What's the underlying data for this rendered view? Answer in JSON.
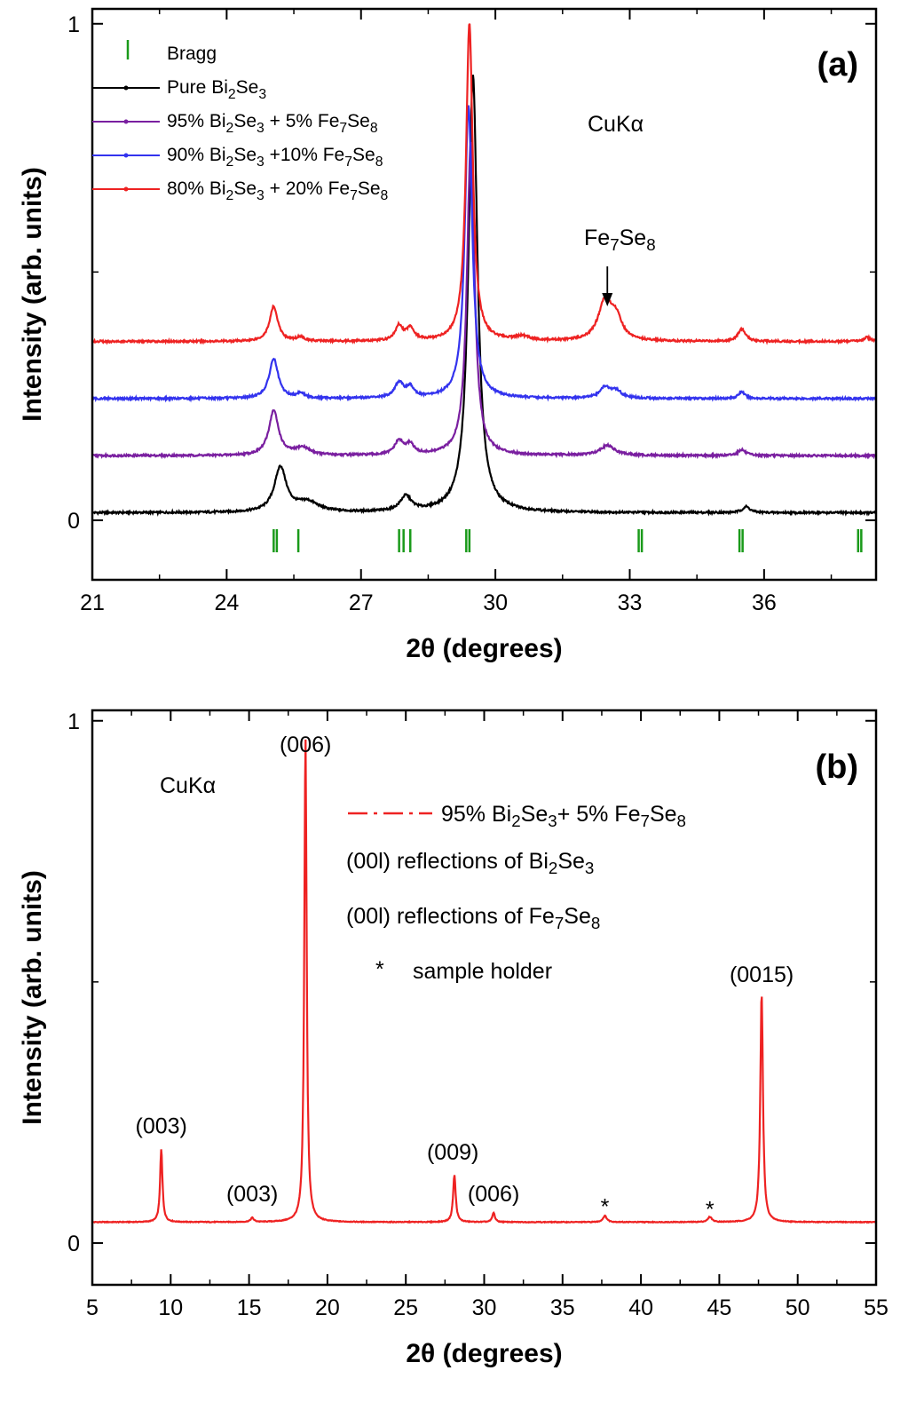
{
  "chart_data": [
    {
      "type": "line",
      "panel_label": "(a)",
      "xlabel": "2θ (degrees)",
      "ylabel": "Intensity (arb. units)",
      "xlim": [
        21,
        38.5
      ],
      "ylim": [
        -0.12,
        1.03
      ],
      "xticks": [
        21,
        24,
        27,
        30,
        33,
        36
      ],
      "yticks": [
        0,
        1
      ],
      "annotations": {
        "source": "CuKα",
        "phase_arrow": {
          "text_base": "Fe",
          "sub1": "7",
          "mid": "Se",
          "sub2": "8",
          "x": 32.5
        }
      },
      "legend": [
        {
          "kind": "bragg",
          "text": "Bragg"
        },
        {
          "kind": "series",
          "series": 0,
          "parts": [
            "Pure Bi",
            "2",
            "Se",
            "3"
          ]
        },
        {
          "kind": "series",
          "series": 1,
          "parts": [
            "95% Bi",
            "2",
            "Se",
            "3",
            " + 5% Fe",
            "7",
            "Se",
            "8"
          ]
        },
        {
          "kind": "series",
          "series": 2,
          "parts": [
            "90% Bi",
            "2",
            "Se",
            "3",
            " +10% Fe",
            "7",
            "Se",
            "8"
          ]
        },
        {
          "kind": "series",
          "series": 3,
          "parts": [
            "80% Bi",
            "2",
            "Se",
            "3",
            " + 20% Fe",
            "7",
            "Se",
            "8"
          ]
        }
      ],
      "bragg_positions": [
        25.05,
        25.12,
        25.6,
        27.85,
        27.95,
        28.1,
        29.35,
        29.42,
        33.2,
        33.27,
        35.45,
        35.52,
        38.1,
        38.17
      ],
      "bragg_color": "#1a9a1a",
      "series": [
        {
          "color": "#000000",
          "offset": 0.015,
          "peaks": [
            [
              25.2,
              0.09,
              0.16
            ],
            [
              25.8,
              0.02,
              0.3
            ],
            [
              28.0,
              0.03,
              0.15
            ],
            [
              29.5,
              0.88,
              0.12
            ],
            [
              35.6,
              0.012,
              0.1
            ]
          ]
        },
        {
          "color": "#7a1fa0",
          "offset": 0.13,
          "peaks": [
            [
              25.05,
              0.09,
              0.13
            ],
            [
              25.7,
              0.015,
              0.2
            ],
            [
              27.85,
              0.028,
              0.12
            ],
            [
              28.1,
              0.02,
              0.1
            ],
            [
              29.45,
              0.63,
              0.1
            ],
            [
              32.5,
              0.02,
              0.2
            ],
            [
              35.5,
              0.012,
              0.1
            ]
          ]
        },
        {
          "color": "#3333ee",
          "offset": 0.245,
          "peaks": [
            [
              25.05,
              0.08,
              0.12
            ],
            [
              25.65,
              0.01,
              0.1
            ],
            [
              27.85,
              0.03,
              0.12
            ],
            [
              28.1,
              0.02,
              0.1
            ],
            [
              29.4,
              0.59,
              0.1
            ],
            [
              32.45,
              0.022,
              0.14
            ],
            [
              32.7,
              0.014,
              0.14
            ],
            [
              35.5,
              0.014,
              0.08
            ]
          ]
        },
        {
          "color": "#ee2222",
          "offset": 0.36,
          "peaks": [
            [
              25.05,
              0.07,
              0.11
            ],
            [
              25.65,
              0.008,
              0.1
            ],
            [
              27.85,
              0.03,
              0.1
            ],
            [
              28.1,
              0.025,
              0.1
            ],
            [
              29.42,
              0.64,
              0.09
            ],
            [
              30.6,
              0.008,
              0.2
            ],
            [
              32.45,
              0.08,
              0.18
            ],
            [
              32.7,
              0.04,
              0.15
            ],
            [
              35.5,
              0.025,
              0.1
            ],
            [
              38.3,
              0.008,
              0.1
            ]
          ]
        }
      ]
    },
    {
      "type": "line",
      "panel_label": "(b)",
      "xlabel": "2θ (degrees)",
      "ylabel": "Intensity (arb. units)",
      "xlim": [
        5,
        55
      ],
      "ylim": [
        -0.08,
        1.02
      ],
      "xticks": [
        5,
        10,
        15,
        20,
        25,
        30,
        35,
        40,
        45,
        50,
        55
      ],
      "yticks": [
        0,
        1
      ],
      "annotations": {
        "source": "CuKα"
      },
      "legend": [
        {
          "kind": "series",
          "parts": [
            "95% Bi",
            "2",
            "Se",
            "3",
            "+ 5% Fe",
            "7",
            "Se",
            "8"
          ]
        },
        {
          "kind": "text",
          "color": "#000000",
          "parts": [
            "(00l) reflections of Bi",
            "2",
            "Se",
            "3"
          ]
        },
        {
          "kind": "text",
          "color": "#7b93b3",
          "parts": [
            "(00l) reflections of Fe",
            "7",
            "Se",
            "8"
          ]
        },
        {
          "kind": "star",
          "text": "sample holder"
        }
      ],
      "peak_labels": [
        {
          "text": "(003)",
          "x": 9.4,
          "y": 0.21,
          "color": "#000000"
        },
        {
          "text": "(003)",
          "x": 15.2,
          "y": 0.08,
          "color": "#7b93b3"
        },
        {
          "text": "(006)",
          "x": 18.6,
          "y": 0.94,
          "color": "#000000"
        },
        {
          "text": "(009)",
          "x": 28.0,
          "y": 0.16,
          "color": "#000000"
        },
        {
          "text": "(006)",
          "x": 30.6,
          "y": 0.08,
          "color": "#7b93b3"
        },
        {
          "text": "*",
          "x": 37.7,
          "y": 0.055,
          "color": "#000000"
        },
        {
          "text": "*",
          "x": 44.4,
          "y": 0.05,
          "color": "#000000"
        },
        {
          "text": "(0015)",
          "x": 47.7,
          "y": 0.5,
          "color": "#000000"
        }
      ],
      "series": [
        {
          "name": "95% Bi2Se3+ 5% Fe7Se8",
          "color": "#ee2222",
          "offset": 0.04,
          "peaks": [
            [
              9.4,
              0.14,
              0.09
            ],
            [
              15.2,
              0.008,
              0.12
            ],
            [
              18.6,
              0.93,
              0.09
            ],
            [
              28.1,
              0.09,
              0.1
            ],
            [
              30.6,
              0.018,
              0.1
            ],
            [
              37.7,
              0.012,
              0.15
            ],
            [
              44.4,
              0.01,
              0.15
            ],
            [
              47.7,
              0.44,
              0.1
            ]
          ]
        }
      ]
    }
  ]
}
